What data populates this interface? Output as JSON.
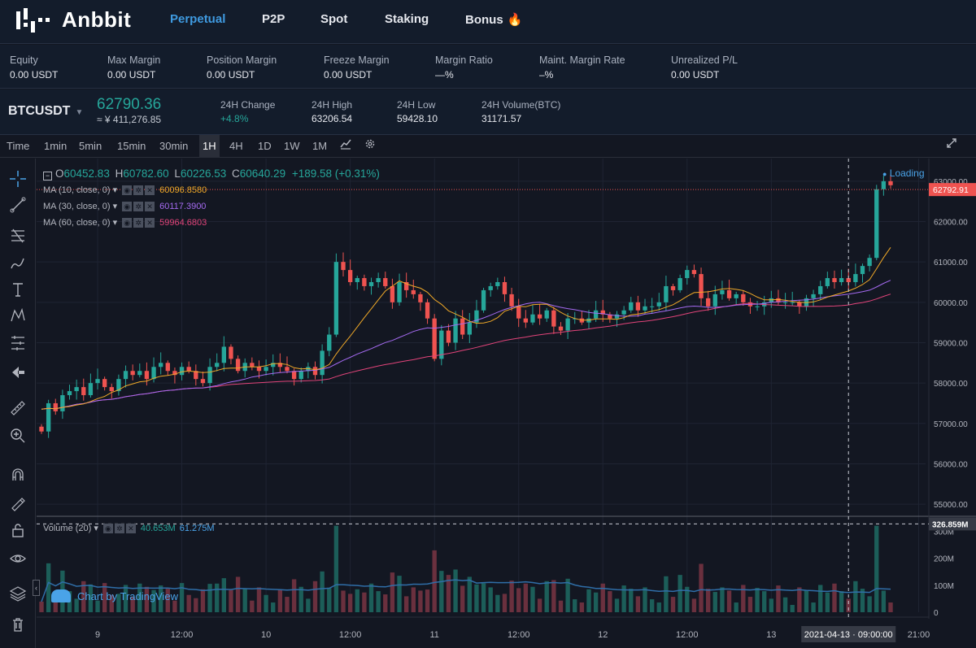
{
  "brand": {
    "name": "Anbbit"
  },
  "nav": [
    {
      "label": "Perpetual",
      "active": true
    },
    {
      "label": "P2P",
      "active": false
    },
    {
      "label": "Spot",
      "active": false
    },
    {
      "label": "Staking",
      "active": false
    },
    {
      "label": "Bonus",
      "active": false
    }
  ],
  "account": [
    {
      "label": "Equity",
      "value": "0.00 USDT"
    },
    {
      "label": "Max Margin",
      "value": "0.00 USDT"
    },
    {
      "label": "Position Margin",
      "value": "0.00 USDT"
    },
    {
      "label": "Freeze Margin",
      "value": "0.00 USDT"
    },
    {
      "label": "Margin Ratio",
      "value": "—%"
    },
    {
      "label": "Maint. Margin Rate",
      "value": "–%"
    },
    {
      "label": "Unrealized P/L",
      "value": "0.00 USDT"
    }
  ],
  "ticker": {
    "symbol": "BTCUSDT",
    "price": "62790.36",
    "price_cny": "≈ ¥ 411,276.85",
    "stats": [
      {
        "label": "24H Change",
        "value": "+4.8%"
      },
      {
        "label": "24H High",
        "value": "63206.54"
      },
      {
        "label": "24H Low",
        "value": "59428.10"
      },
      {
        "label": "24H Volume(BTC)",
        "value": "31171.57"
      }
    ]
  },
  "timeframes": [
    "Time",
    "1min",
    "5min",
    "15min",
    "30min",
    "1H",
    "4H",
    "1D",
    "1W",
    "1M"
  ],
  "active_timeframe": "1H",
  "legend": {
    "o_label": "O",
    "o": "60452.83",
    "h_label": "H",
    "h": "60782.60",
    "l_label": "L",
    "l": "60226.53",
    "c_label": "C",
    "c": "60640.29",
    "change": "+189.58 (+0.31%)"
  },
  "ma_indicators": [
    {
      "label": "MA (10, close, 0)",
      "value": "60096.8580",
      "color": "#f0a928"
    },
    {
      "label": "MA (30, close, 0)",
      "value": "60117.3900",
      "color": "#a46af0"
    },
    {
      "label": "MA (60, close, 0)",
      "value": "59964.6803",
      "color": "#e2447a"
    }
  ],
  "volume_legend": {
    "label": "Volume (20)",
    "v1": "40.653M",
    "v2": "61.275M"
  },
  "loading_text": "Loading",
  "tradingview_text": "Chart by TradingView",
  "crosshair": {
    "time_label": "2021-04-13 · 09:00:00",
    "price_label": "62792.91",
    "volume_label": "326.859M"
  },
  "colors": {
    "up": "#26a69a",
    "down": "#ef5350",
    "accent": "#3f9ae0",
    "ma10": "#f0a928",
    "ma30": "#a46af0",
    "ma60": "#e2447a"
  },
  "chart_data": {
    "type": "candlestick",
    "symbol": "BTCUSDT",
    "interval": "1H",
    "ylim": [
      54700,
      63400
    ],
    "y_ticks": [
      "63000.00",
      "62000.00",
      "61000.00",
      "60000.00",
      "59000.00",
      "58000.00",
      "57000.00",
      "56000.00",
      "55000.00"
    ],
    "y_tick_values": [
      63000,
      62000,
      61000,
      60000,
      59000,
      58000,
      57000,
      56000,
      55000
    ],
    "x_ticks": [
      {
        "i": 8,
        "label": "9"
      },
      {
        "i": 20,
        "label": "12:00"
      },
      {
        "i": 32,
        "label": "10"
      },
      {
        "i": 44,
        "label": "12:00"
      },
      {
        "i": 56,
        "label": "11"
      },
      {
        "i": 68,
        "label": "12:00"
      },
      {
        "i": 80,
        "label": "12"
      },
      {
        "i": 92,
        "label": "12:00"
      },
      {
        "i": 104,
        "label": "13"
      },
      {
        "i": 125,
        "label": "21:00"
      }
    ],
    "volume_ticks": [
      "300M",
      "200M",
      "100M",
      "0"
    ],
    "volume_tick_values": [
      300,
      200,
      100,
      0
    ],
    "volume_ylim": [
      0,
      340
    ],
    "closes": [
      56800,
      57500,
      57300,
      57700,
      57800,
      57900,
      57700,
      58000,
      58100,
      57900,
      57800,
      58100,
      58300,
      58200,
      58300,
      58100,
      58400,
      58500,
      58300,
      58200,
      58400,
      58300,
      58100,
      58000,
      58400,
      58500,
      58900,
      58600,
      58300,
      58500,
      58400,
      58300,
      58400,
      58500,
      58400,
      58300,
      58100,
      58300,
      58400,
      58200,
      58800,
      59200,
      61000,
      60800,
      60500,
      60600,
      60400,
      60500,
      60600,
      60400,
      60000,
      60500,
      60300,
      60200,
      60000,
      59600,
      58600,
      59300,
      59000,
      59600,
      59200,
      59500,
      59800,
      60300,
      60400,
      60500,
      60200,
      59900,
      59600,
      59500,
      59700,
      59600,
      59800,
      59400,
      59300,
      59600,
      59600,
      59500,
      59600,
      59800,
      59700,
      59600,
      59700,
      59800,
      60000,
      59800,
      59900,
      59900,
      60000,
      60400,
      60300,
      60600,
      60800,
      60700,
      60100,
      59900,
      60200,
      60300,
      60100,
      60200,
      60000,
      59900,
      59900,
      60000,
      60100,
      60000,
      60000,
      60000,
      59900,
      60100,
      60200,
      60400,
      60600,
      60500,
      60600,
      60500,
      60700,
      60900,
      61100,
      62800,
      63000,
      62900
    ]
  }
}
